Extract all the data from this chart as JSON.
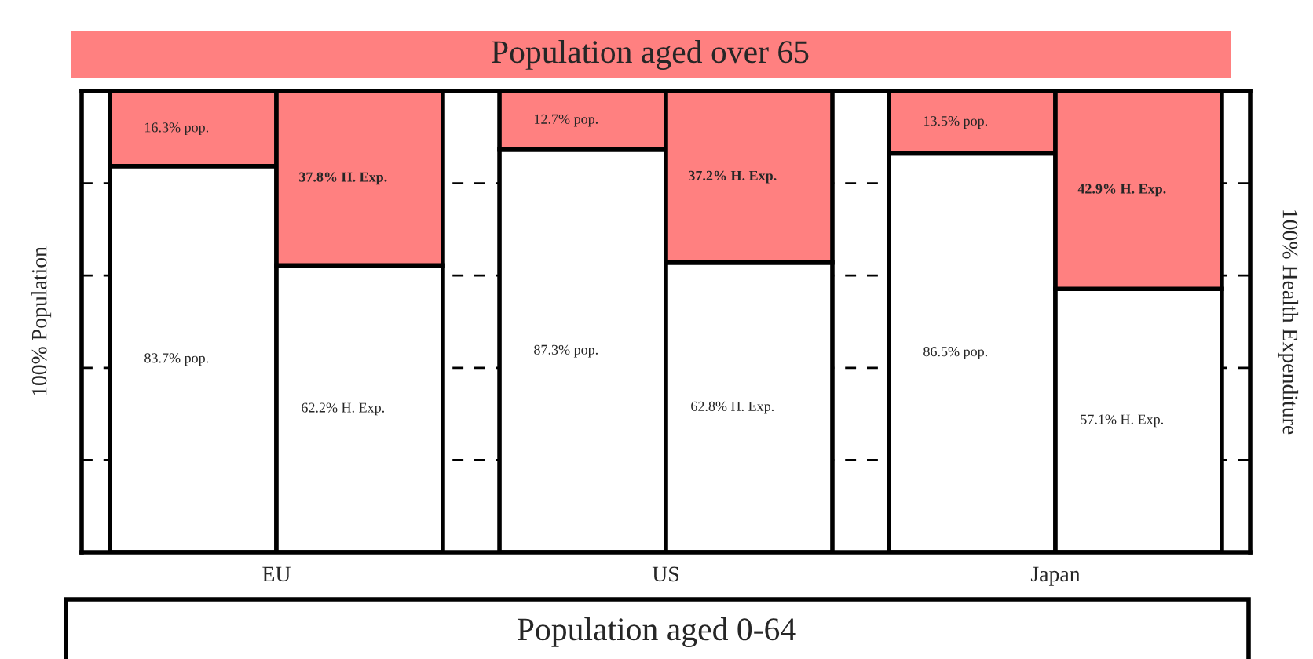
{
  "chart_data": {
    "type": "bar",
    "stacked": true,
    "categories": [
      null,
      null,
      null,
      null,
      null,
      null
    ],
    "series": [
      {
        "name": "Population aged 0-64",
        "color": "#ffffff",
        "values": [
          83.7,
          62.2,
          87.3,
          62.8,
          86.5,
          57.1
        ],
        "value_labels": [
          "83.7% pop.",
          "62.2% H. Exp.",
          "87.3% pop.",
          "62.8% H. Exp.",
          "86.5% pop.",
          "57.1% H. Exp."
        ]
      },
      {
        "name": "Population aged over 65",
        "color": "#ff8080",
        "values": [
          16.3,
          37.8,
          12.7,
          37.2,
          13.5,
          42.9
        ],
        "value_labels": [
          "16.3% pop.",
          "37.8% H. Exp.",
          "12.7% pop.",
          "37.2% H. Exp.",
          "13.5% pop.",
          "42.9% H. Exp."
        ]
      }
    ],
    "annotations": [
      "EU",
      "US",
      "Japan"
    ],
    "ylabel": "100% Population",
    "y2label": "100% Health Expenditure",
    "ylim": [
      0,
      100
    ],
    "yticks": [
      {
        "value": 0,
        "label": null
      },
      {
        "value": 20,
        "label": null
      },
      {
        "value": 40,
        "label": null
      },
      {
        "value": 60,
        "label": null
      },
      {
        "value": 80,
        "label": null
      },
      {
        "value": 100,
        "label": null
      }
    ],
    "grid": "y",
    "tick_labels": false
  }
}
